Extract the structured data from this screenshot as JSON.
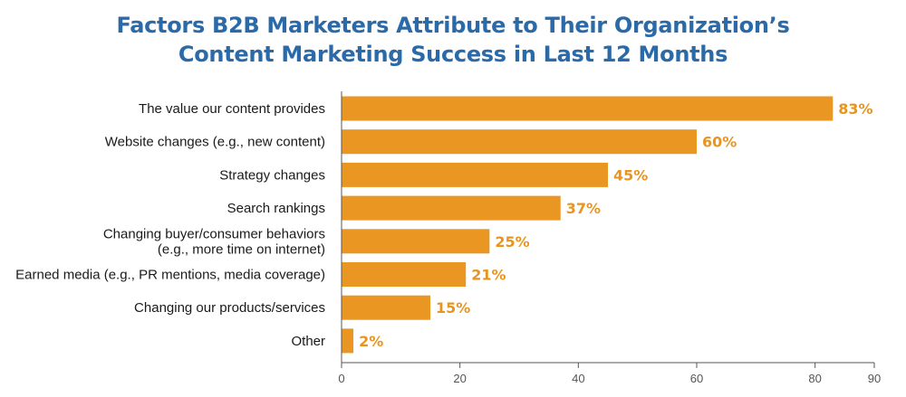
{
  "chart_data": {
    "type": "bar",
    "orientation": "horizontal",
    "title_lines": [
      "Factors B2B Marketers Attribute to Their Organization’s",
      "Content Marketing Success in Last 12 Months"
    ],
    "categories": [
      [
        "The value our content provides"
      ],
      [
        "Website changes (e.g., new content)"
      ],
      [
        "Strategy changes"
      ],
      [
        "Search rankings"
      ],
      [
        "Changing buyer/consumer behaviors",
        "(e.g., more time on internet)"
      ],
      [
        "Earned media (e.g., PR mentions, media coverage)"
      ],
      [
        "Changing our products/services"
      ],
      [
        "Other"
      ]
    ],
    "values": [
      83,
      60,
      45,
      37,
      25,
      21,
      15,
      2
    ],
    "value_labels": [
      "83%",
      "60%",
      "45%",
      "37%",
      "25%",
      "21%",
      "15%",
      "2%"
    ],
    "xlim": [
      0,
      90
    ],
    "xticks": [
      0,
      20,
      40,
      60,
      80,
      90
    ],
    "xtick_labels": [
      "0",
      "20",
      "40",
      "60",
      "80",
      "90"
    ],
    "grid": false,
    "bar_color": "#ea9623",
    "value_label_color": "#e8951f",
    "title_color": "#2b6aa8",
    "axis_color": "#555555"
  }
}
